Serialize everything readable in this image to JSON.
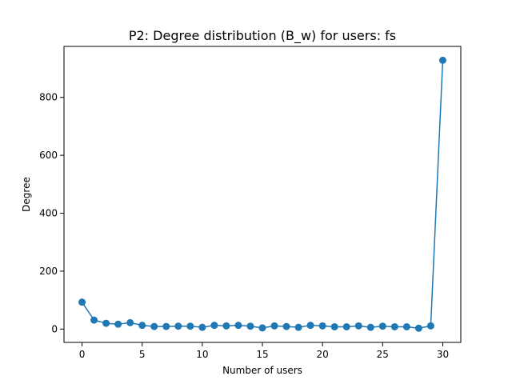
{
  "chart_data": {
    "type": "line",
    "title": "P2: Degree distribution (B_w) for users: fs",
    "xlabel": "Number of users",
    "ylabel": "Degree",
    "xlim": [
      -1.5,
      31.5
    ],
    "ylim": [
      -46,
      976
    ],
    "xticks": [
      0,
      5,
      10,
      15,
      20,
      25,
      30
    ],
    "yticks": [
      0,
      200,
      400,
      600,
      800
    ],
    "grid": false,
    "legend": "none",
    "series": [
      {
        "color": "#1f77b4",
        "marker": "circle",
        "x": [
          0,
          1,
          2,
          3,
          4,
          5,
          6,
          7,
          8,
          9,
          10,
          11,
          12,
          13,
          14,
          15,
          16,
          17,
          18,
          19,
          20,
          21,
          22,
          23,
          24,
          25,
          26,
          27,
          28,
          29,
          30
        ],
        "y": [
          93,
          31,
          20,
          17,
          22,
          13,
          9,
          9,
          10,
          10,
          6,
          13,
          11,
          13,
          10,
          4,
          11,
          9,
          6,
          13,
          11,
          8,
          8,
          11,
          6,
          10,
          8,
          8,
          3,
          11,
          928
        ]
      }
    ]
  }
}
